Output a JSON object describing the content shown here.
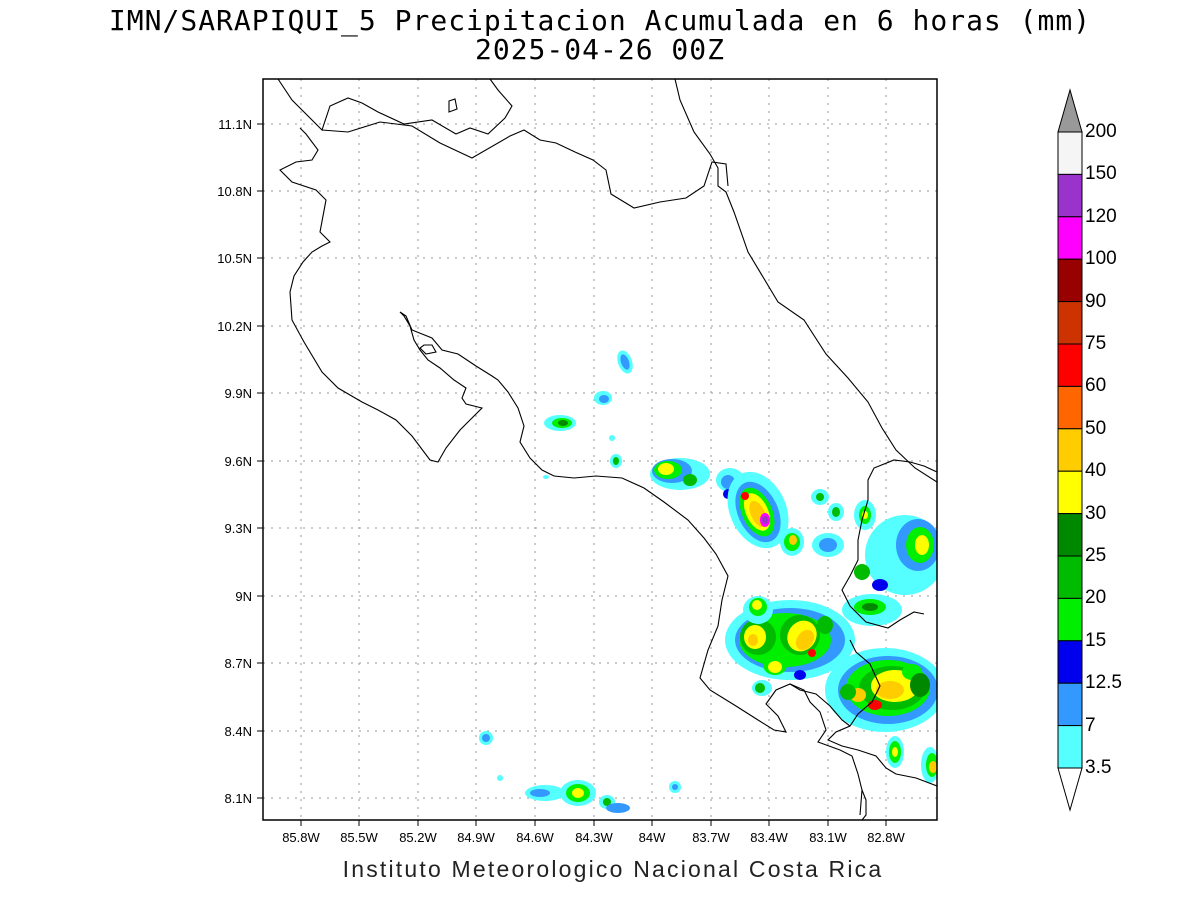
{
  "header": {
    "title_line1": "IMN/SARAPIQUI_5 Precipitacion Acumulada en 6 horas (mm)",
    "title_line2": "2025-04-26 00Z"
  },
  "footer": {
    "credit": "Instituto Meteorologico Nacional Costa Rica"
  },
  "map": {
    "lon_range": [
      -86.0,
      -82.55
    ],
    "lat_range": [
      8.0,
      11.3
    ],
    "lon_ticks": [
      "85.8W",
      "85.5W",
      "85.2W",
      "84.9W",
      "84.6W",
      "84.3W",
      "84W",
      "83.7W",
      "83.4W",
      "83.1W",
      "82.8W"
    ],
    "lat_ticks": [
      "11.1N",
      "10.8N",
      "10.5N",
      "10.2N",
      "9.9N",
      "9.6N",
      "9.3N",
      "9N",
      "8.7N",
      "8.4N",
      "8.1N"
    ],
    "grid": true,
    "background_color": "#ffffff",
    "coastline_color": "#000000"
  },
  "colorbar": {
    "position": "right",
    "labels": [
      "3.5",
      "7",
      "12.5",
      "15",
      "20",
      "25",
      "30",
      "40",
      "50",
      "60",
      "75",
      "90",
      "100",
      "120",
      "150",
      "200"
    ],
    "colors": [
      "#55ffff",
      "#3399ff",
      "#0000ee",
      "#00ee00",
      "#00bb00",
      "#008800",
      "#ffff00",
      "#ffcc00",
      "#ff6600",
      "#ff0000",
      "#cc3300",
      "#990000",
      "#ff00ff",
      "#9933cc",
      "#f5f5f5",
      "#999999"
    ],
    "arrow_top_color": "#999999",
    "arrow_bottom_color": "#ffffff"
  }
}
